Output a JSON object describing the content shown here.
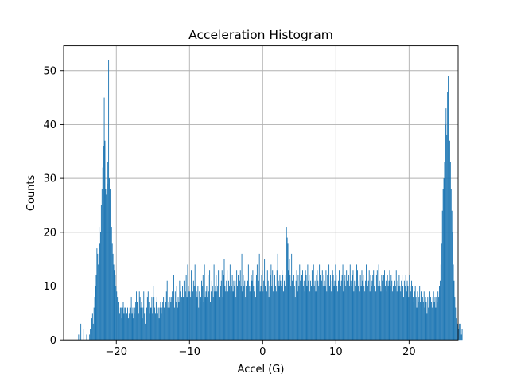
{
  "chart_data": {
    "type": "bar",
    "title": "Acceleration Histogram",
    "xlabel": "Accel (G)",
    "ylabel": "Counts",
    "xlim": [
      -27.2,
      26.7
    ],
    "ylim": [
      0,
      54.6
    ],
    "x_ticks": [
      -20,
      -10,
      0,
      10,
      20
    ],
    "x_tick_labels": [
      "−20",
      "−10",
      "0",
      "10",
      "20"
    ],
    "y_ticks": [
      0,
      10,
      20,
      30,
      40,
      50
    ],
    "y_tick_labels": [
      "0",
      "10",
      "20",
      "30",
      "40",
      "50"
    ],
    "grid": true,
    "bar_color": "#1f77b4",
    "bin_range": [
      -25.7,
      25.3
    ],
    "bin_width": 0.1,
    "series": [
      {
        "values": [
          0,
          0,
          0,
          0,
          0,
          1,
          0,
          0,
          3,
          0,
          0,
          0,
          2,
          0,
          0,
          0,
          1,
          0,
          0,
          0,
          1,
          2,
          4,
          4,
          5,
          3,
          6,
          8,
          10,
          12,
          17,
          16,
          14,
          21,
          18,
          20,
          25,
          28,
          32,
          36,
          45,
          37,
          28,
          27,
          29,
          33,
          52,
          30,
          28,
          26,
          21,
          18,
          16,
          14,
          13,
          12,
          10,
          9,
          8,
          7,
          6,
          5,
          6,
          6,
          4,
          6,
          7,
          5,
          6,
          6,
          5,
          5,
          6,
          4,
          5,
          6,
          6,
          8,
          5,
          6,
          4,
          5,
          6,
          7,
          9,
          7,
          6,
          5,
          9,
          8,
          6,
          7,
          4,
          6,
          9,
          5,
          3,
          5,
          6,
          8,
          9,
          7,
          5,
          6,
          6,
          8,
          5,
          10,
          8,
          6,
          5,
          7,
          8,
          5,
          6,
          4,
          6,
          7,
          5,
          6,
          7,
          8,
          6,
          5,
          7,
          9,
          11,
          6,
          7,
          6,
          8,
          7,
          8,
          9,
          8,
          12,
          6,
          9,
          7,
          10,
          6,
          8,
          7,
          11,
          9,
          8,
          8,
          10,
          8,
          11,
          8,
          9,
          12,
          8,
          14,
          10,
          9,
          9,
          8,
          13,
          7,
          9,
          11,
          10,
          14,
          10,
          9,
          8,
          10,
          6,
          9,
          7,
          8,
          11,
          10,
          12,
          7,
          14,
          8,
          9,
          10,
          8,
          12,
          9,
          13,
          7,
          9,
          11,
          10,
          8,
          14,
          9,
          10,
          12,
          9,
          10,
          13,
          8,
          9,
          10,
          11,
          13,
          8,
          12,
          15,
          10,
          9,
          11,
          13,
          9,
          11,
          10,
          14,
          9,
          10,
          12,
          9,
          11,
          10,
          11,
          8,
          13,
          10,
          12,
          9,
          11,
          13,
          10,
          16,
          9,
          12,
          10,
          11,
          8,
          10,
          13,
          11,
          14,
          10,
          9,
          10,
          12,
          11,
          13,
          10,
          9,
          11,
          8,
          12,
          14,
          10,
          11,
          16,
          9,
          10,
          12,
          13,
          9,
          11,
          15,
          10,
          12,
          9,
          13,
          11,
          8,
          10,
          12,
          14,
          10,
          13,
          9,
          11,
          12,
          10,
          9,
          13,
          16,
          11,
          10,
          12,
          11,
          10,
          13,
          12,
          9,
          11,
          10,
          12,
          21,
          19,
          18,
          13,
          15,
          12,
          10,
          16,
          11,
          9,
          12,
          10,
          8,
          11,
          13,
          9,
          12,
          10,
          14,
          11,
          9,
          12,
          13,
          10,
          11,
          9,
          13,
          12,
          10,
          14,
          11,
          12,
          9,
          11,
          10,
          13,
          12,
          14,
          10,
          11,
          9,
          12,
          13,
          11,
          10,
          14,
          12,
          9,
          11,
          13,
          10,
          12,
          11,
          10,
          13,
          9,
          12,
          11,
          14,
          10,
          12,
          9,
          11,
          13,
          12,
          10,
          11,
          14,
          12,
          10,
          9,
          11,
          13,
          12,
          10,
          11,
          12,
          14,
          9,
          11,
          12,
          10,
          13,
          11,
          9,
          12,
          10,
          14,
          11,
          10,
          12,
          13,
          9,
          11,
          10,
          12,
          14,
          13,
          10,
          11,
          9,
          12,
          10,
          13,
          11,
          12,
          10,
          9,
          11,
          14,
          12,
          10,
          11,
          13,
          9,
          12,
          10,
          11,
          12,
          13,
          10,
          11,
          9,
          12,
          13,
          10,
          14,
          11,
          10,
          9,
          12,
          11,
          10,
          12,
          13,
          10,
          11,
          9,
          12,
          10,
          11,
          13,
          10,
          12,
          11,
          9,
          10,
          12,
          11,
          10,
          13,
          9,
          11,
          10,
          12,
          10,
          9,
          11,
          12,
          10,
          8,
          11,
          10,
          12,
          9,
          11,
          10,
          8,
          12,
          10,
          9,
          11,
          10,
          8,
          7,
          9,
          10,
          8,
          6,
          9,
          7,
          8,
          10,
          7,
          9,
          6,
          8,
          7,
          9,
          6,
          8,
          7,
          5,
          8,
          6,
          7,
          9,
          8,
          7,
          6,
          8,
          9,
          7,
          8,
          6,
          8,
          7,
          9,
          8,
          10,
          11,
          14,
          18,
          24,
          28,
          30,
          33,
          40,
          43,
          38,
          46,
          49,
          44,
          37,
          33,
          28,
          24,
          20,
          14,
          11,
          8,
          6,
          4,
          3,
          3,
          2,
          3,
          2,
          3,
          1,
          2,
          0
        ]
      }
    ]
  }
}
